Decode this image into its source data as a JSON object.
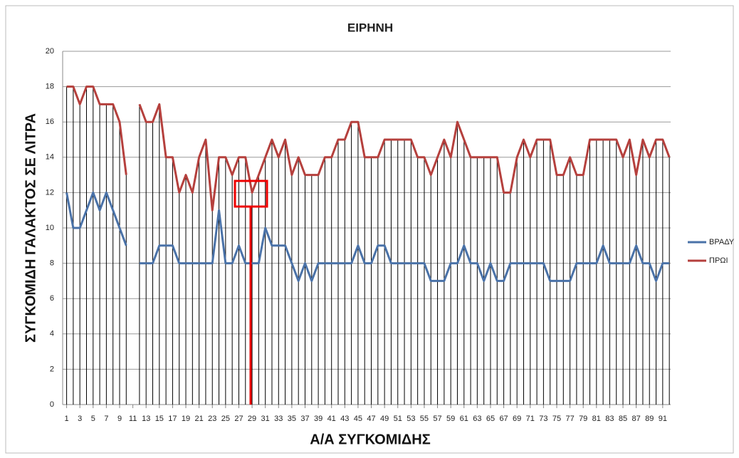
{
  "chart_data": {
    "type": "line",
    "title": "ΕΙΡΗΝΗ",
    "y_label": "ΣΥΓΚΟΜΙΔΗ ΓΑΛΑΚΤΟΣ ΣΕ ΛΙΤΡΑ",
    "x_label": "Α/Α ΣΥΓΚΟΜΙΔΗΣ",
    "x": [
      1,
      2,
      3,
      4,
      5,
      6,
      7,
      8,
      9,
      10,
      11,
      12,
      13,
      14,
      15,
      16,
      17,
      18,
      19,
      20,
      21,
      22,
      23,
      24,
      25,
      26,
      27,
      28,
      29,
      30,
      31,
      32,
      33,
      34,
      35,
      36,
      37,
      38,
      39,
      40,
      41,
      42,
      43,
      44,
      45,
      46,
      47,
      48,
      49,
      50,
      51,
      52,
      53,
      54,
      55,
      56,
      57,
      58,
      59,
      60,
      61,
      62,
      63,
      64,
      65,
      66,
      67,
      68,
      69,
      70,
      71,
      72,
      73,
      74,
      75,
      76,
      77,
      78,
      79,
      80,
      81,
      82,
      83,
      84,
      85,
      86,
      87,
      88,
      89,
      90,
      91,
      92
    ],
    "xlim": [
      0.4,
      92.2
    ],
    "xticks": [
      1,
      3,
      5,
      7,
      9,
      11,
      13,
      15,
      17,
      19,
      21,
      23,
      25,
      27,
      29,
      31,
      33,
      35,
      37,
      39,
      41,
      43,
      45,
      47,
      49,
      51,
      53,
      55,
      57,
      59,
      61,
      63,
      65,
      67,
      69,
      71,
      73,
      75,
      77,
      79,
      81,
      83,
      85,
      87,
      89,
      91
    ],
    "ylim": [
      0,
      20
    ],
    "yticks": [
      0,
      2,
      4,
      6,
      8,
      10,
      12,
      14,
      16,
      18,
      20
    ],
    "grid": true,
    "drop_lines": true,
    "legend": "right",
    "series": [
      {
        "name": "ΒΡΑΔΥ",
        "color": "#4a72a8",
        "values": [
          12,
          10,
          10,
          11,
          12,
          11,
          12,
          11,
          10,
          9,
          null,
          8,
          8,
          8,
          9,
          9,
          9,
          8,
          8,
          8,
          8,
          8,
          8,
          11,
          8,
          8,
          9,
          8,
          8,
          8,
          10,
          9,
          9,
          9,
          8,
          7,
          8,
          7,
          8,
          8,
          8,
          8,
          8,
          8,
          9,
          8,
          8,
          9,
          9,
          8,
          8,
          8,
          8,
          8,
          8,
          7,
          7,
          7,
          8,
          8,
          9,
          8,
          8,
          7,
          8,
          7,
          7,
          8,
          8,
          8,
          8,
          8,
          8,
          7,
          7,
          7,
          7,
          8,
          8,
          8,
          8,
          9,
          8,
          8,
          8,
          8,
          9,
          8,
          8,
          7,
          8,
          8
        ]
      },
      {
        "name": "ΠΡΩΙ",
        "color": "#b5403d",
        "values": [
          18,
          18,
          17,
          18,
          18,
          17,
          17,
          17,
          16,
          13,
          null,
          17,
          16,
          16,
          17,
          14,
          14,
          12,
          13,
          12,
          14,
          15,
          11,
          14,
          14,
          13,
          14,
          14,
          12,
          13,
          14,
          15,
          14,
          15,
          13,
          14,
          13,
          13,
          13,
          14,
          14,
          15,
          15,
          16,
          16,
          14,
          14,
          14,
          15,
          15,
          15,
          15,
          15,
          14,
          14,
          13,
          14,
          15,
          14,
          16,
          15,
          14,
          14,
          14,
          14,
          14,
          12,
          12,
          14,
          15,
          14,
          15,
          15,
          15,
          13,
          13,
          14,
          13,
          13,
          15,
          15,
          15,
          15,
          15,
          14,
          15,
          13,
          15,
          14,
          15,
          15,
          14
        ]
      }
    ]
  }
}
